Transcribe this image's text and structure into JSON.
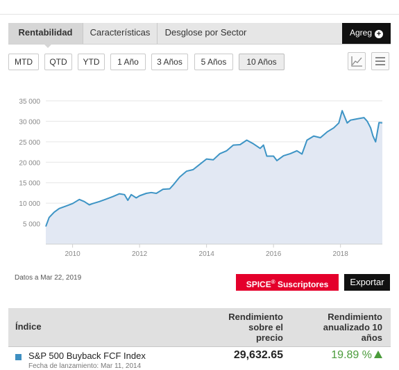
{
  "tabs": [
    {
      "label": "Rentabilidad",
      "active": true
    },
    {
      "label": "Características",
      "active": false
    },
    {
      "label": "Desglose por Sector",
      "active": false
    }
  ],
  "agreg_label": "Agreg",
  "agreg_icon": "plus-circle-icon",
  "ranges": [
    {
      "label": "MTD",
      "active": false
    },
    {
      "label": "QTD",
      "active": false
    },
    {
      "label": "YTD",
      "active": false
    },
    {
      "label": "1 Año",
      "active": false
    },
    {
      "label": "3 Años",
      "active": false
    },
    {
      "label": "5 Años",
      "active": false
    },
    {
      "label": "10 Años",
      "active": true
    }
  ],
  "view_icons": [
    "line-chart-icon",
    "table-menu-icon"
  ],
  "chart_data": {
    "type": "area",
    "x_ticks": [
      "2010",
      "2012",
      "2014",
      "2016",
      "2018"
    ],
    "y_ticks": [
      "5 000",
      "10 000",
      "15 000",
      "20 000",
      "25 000",
      "30 000",
      "35 000"
    ],
    "ylim": [
      0,
      35000
    ],
    "xlim": [
      2009.2,
      2019.25
    ],
    "grid": true,
    "line_color": "#3d94c5",
    "fill_color": "#e2e8f3",
    "series": [
      {
        "x": [
          2009.2,
          2009.3,
          2009.45,
          2009.6,
          2009.8,
          2010.0,
          2010.2,
          2010.35,
          2010.5,
          2010.6,
          2010.8,
          2011.0,
          2011.2,
          2011.4,
          2011.55,
          2011.65,
          2011.75,
          2011.9,
          2012.0,
          2012.2,
          2012.35,
          2012.5,
          2012.7,
          2012.9,
          2013.0,
          2013.2,
          2013.4,
          2013.6,
          2013.8,
          2014.0,
          2014.2,
          2014.4,
          2014.6,
          2014.8,
          2015.0,
          2015.2,
          2015.4,
          2015.6,
          2015.7,
          2015.8,
          2016.0,
          2016.1,
          2016.3,
          2016.5,
          2016.7,
          2016.85,
          2017.0,
          2017.2,
          2017.4,
          2017.6,
          2017.8,
          2017.95,
          2018.05,
          2018.1,
          2018.2,
          2018.3,
          2018.5,
          2018.7,
          2018.8,
          2018.9,
          2018.97,
          2019.05,
          2019.15,
          2019.25
        ],
        "y": [
          4300,
          6500,
          7800,
          8700,
          9300,
          9900,
          10900,
          10400,
          9600,
          9900,
          10400,
          11000,
          11600,
          12300,
          12100,
          10700,
          12100,
          11300,
          11800,
          12400,
          12600,
          12400,
          13400,
          13500,
          14400,
          16400,
          17800,
          18200,
          19500,
          20800,
          20600,
          22100,
          22800,
          24200,
          24300,
          25400,
          24500,
          23400,
          24200,
          21500,
          21500,
          20400,
          21600,
          22100,
          22800,
          22000,
          25400,
          26400,
          26000,
          27400,
          28400,
          29600,
          32600,
          31600,
          29600,
          30300,
          30600,
          30900,
          30000,
          28400,
          26400,
          25000,
          29700,
          29632
        ]
      }
    ]
  },
  "datos_label": "Datos a Mar 22, 2019",
  "spice_label": "SPICE",
  "spice_sup": "®",
  "spice_suffix": " Suscriptores",
  "export_label": "Exportar",
  "table": {
    "col_index": "Índice",
    "col_price": [
      "Rendimiento",
      "sobre el",
      "precio"
    ],
    "col_return": [
      "Rendimiento",
      "anualizado 10",
      "años"
    ],
    "row": {
      "name": "S&P 500 Buyback FCF Index",
      "value": "29,632.65",
      "return": "19.89 %",
      "color": "#3e8fc1",
      "sub": "Fecha de lanzamiento: Mar 11, 2014"
    }
  }
}
